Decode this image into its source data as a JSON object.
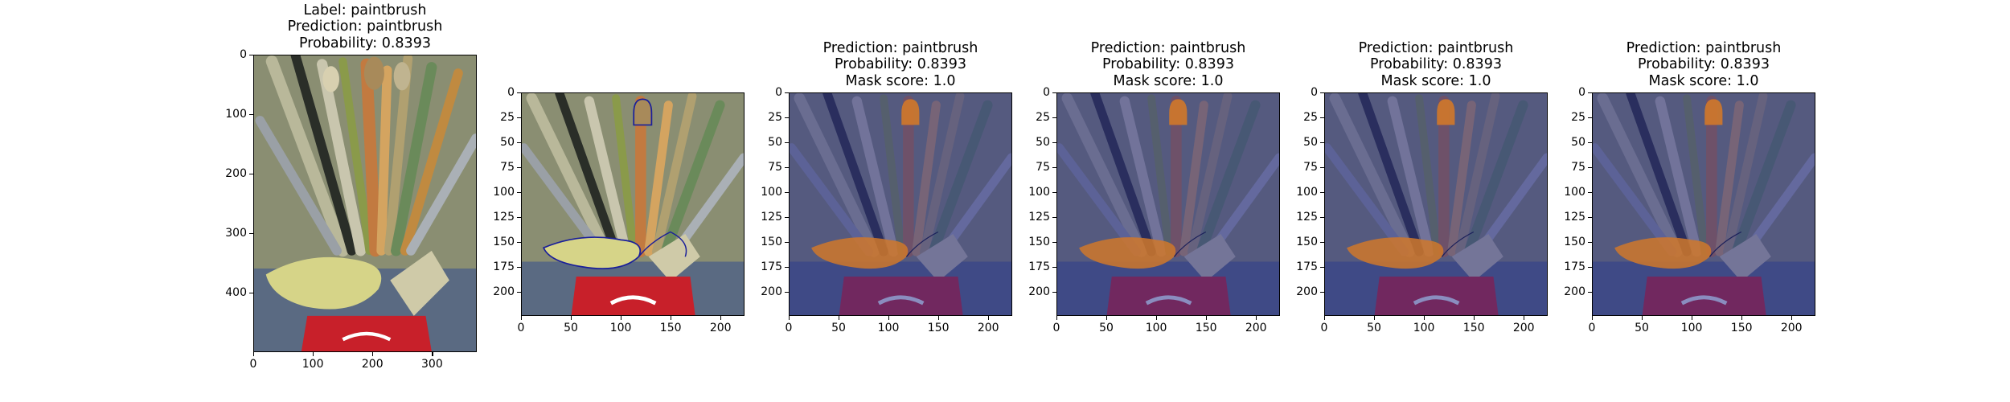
{
  "figure": {
    "panels": [
      {
        "title": "Label: paintbrush\nPrediction: paintbrush\nProbability: 0.8393",
        "image": "paintbrush-photo",
        "xticks": [
          "0",
          "100",
          "200",
          "300"
        ],
        "xtick_values": [
          0,
          100,
          200,
          300
        ],
        "xlim": [
          0,
          375
        ],
        "yticks": [
          "0",
          "100",
          "200",
          "300",
          "400"
        ],
        "ytick_values": [
          0,
          100,
          200,
          300,
          400
        ],
        "ylim": [
          0,
          500
        ]
      },
      {
        "title": "",
        "image": "paintbrush-photo-with-mask-contour",
        "xticks": [
          "0",
          "50",
          "100",
          "150",
          "200"
        ],
        "xtick_values": [
          0,
          50,
          100,
          150,
          200
        ],
        "xlim": [
          0,
          224
        ],
        "yticks": [
          "0",
          "25",
          "50",
          "75",
          "100",
          "125",
          "150",
          "175",
          "200"
        ],
        "ytick_values": [
          0,
          25,
          50,
          75,
          100,
          125,
          150,
          175,
          200
        ],
        "ylim": [
          0,
          224
        ]
      },
      {
        "title": "Prediction: paintbrush\nProbability: 0.8393\nMask score: 1.0",
        "image": "paintbrush-photo-with-mask-overlay",
        "xticks": [
          "0",
          "50",
          "100",
          "150",
          "200"
        ],
        "xtick_values": [
          0,
          50,
          100,
          150,
          200
        ],
        "xlim": [
          0,
          224
        ],
        "yticks": [
          "0",
          "25",
          "50",
          "75",
          "100",
          "125",
          "150",
          "175",
          "200"
        ],
        "ytick_values": [
          0,
          25,
          50,
          75,
          100,
          125,
          150,
          175,
          200
        ],
        "ylim": [
          0,
          224
        ]
      },
      {
        "title": "Prediction: paintbrush\nProbability: 0.8393\nMask score: 1.0",
        "image": "paintbrush-photo-with-mask-overlay",
        "xticks": [
          "0",
          "50",
          "100",
          "150",
          "200"
        ],
        "xtick_values": [
          0,
          50,
          100,
          150,
          200
        ],
        "xlim": [
          0,
          224
        ],
        "yticks": [
          "0",
          "25",
          "50",
          "75",
          "100",
          "125",
          "150",
          "175",
          "200"
        ],
        "ytick_values": [
          0,
          25,
          50,
          75,
          100,
          125,
          150,
          175,
          200
        ],
        "ylim": [
          0,
          224
        ]
      },
      {
        "title": "Prediction: paintbrush\nProbability: 0.8393\nMask score: 1.0",
        "image": "paintbrush-photo-with-mask-overlay",
        "xticks": [
          "0",
          "50",
          "100",
          "150",
          "200"
        ],
        "xtick_values": [
          0,
          50,
          100,
          150,
          200
        ],
        "xlim": [
          0,
          224
        ],
        "yticks": [
          "0",
          "25",
          "50",
          "75",
          "100",
          "125",
          "150",
          "175",
          "200"
        ],
        "ytick_values": [
          0,
          25,
          50,
          75,
          100,
          125,
          150,
          175,
          200
        ],
        "ylim": [
          0,
          224
        ]
      },
      {
        "title": "Prediction: paintbrush\nProbability: 0.8393\nMask score: 1.0",
        "image": "paintbrush-photo-with-mask-overlay",
        "xticks": [
          "0",
          "50",
          "100",
          "150",
          "200"
        ],
        "xtick_values": [
          0,
          50,
          100,
          150,
          200
        ],
        "xlim": [
          0,
          224
        ],
        "yticks": [
          "0",
          "25",
          "50",
          "75",
          "100",
          "125",
          "150",
          "175",
          "200"
        ],
        "ytick_values": [
          0,
          25,
          50,
          75,
          100,
          125,
          150,
          175,
          200
        ],
        "ylim": [
          0,
          224
        ]
      }
    ],
    "colors": {
      "overlay": "#2a2f8a",
      "mask_fill": "#d0782a",
      "contour": "#1a1f9a",
      "can_red": "#c8202a"
    }
  }
}
